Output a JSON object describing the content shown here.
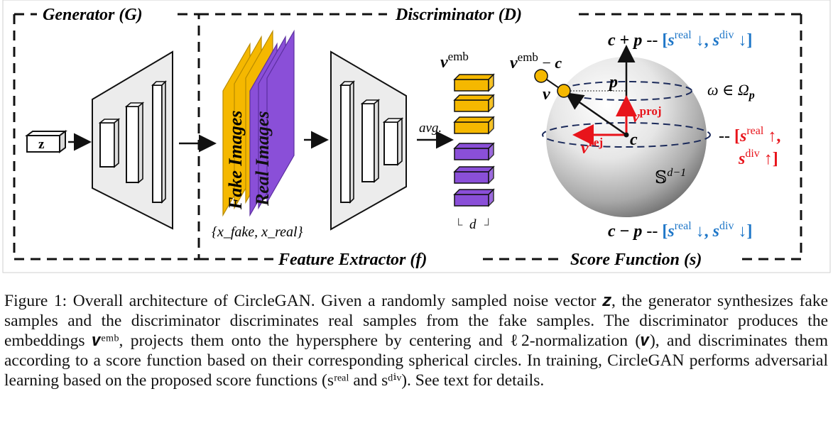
{
  "figure": {
    "headers": {
      "generator": "Generator (G)",
      "discriminator": "Discriminator (D)",
      "feature_extractor": "Feature Extractor (f)",
      "score_function": "Score Function (s)"
    },
    "labels": {
      "z": "z",
      "fake_images": "Fake Images",
      "real_images": "Real Images",
      "image_set": "{x_fake, x_real}",
      "avg": "avg.",
      "v_emb": "v^emb",
      "d": "d",
      "v_emb_minus_c": "v^emb − c",
      "v": "v",
      "p": "p",
      "c": "c",
      "v_proj": "v^proj",
      "v_rej": "v^rej",
      "omega": "ω ∈ Ω_p",
      "sphere": "𝕊^(d−1)",
      "top": "c + p -- [s^real ↓, s^div ↓]",
      "middle": "-- [s^real ↑, s^div ↑]",
      "bottom": "c − p -- [s^real ↓, s^div ↓]"
    },
    "colors": {
      "fake": "#F5B800",
      "real": "#8A4FD8",
      "blue": "#1F77C8",
      "red": "#E8141B",
      "navy": "#1B2A5A"
    }
  },
  "caption": {
    "label": "Figure 1:",
    "text": "Overall architecture of CircleGAN. Given a randomly sampled noise vector 𝒛, the generator synthesizes fake samples and the discriminator discriminates real samples from the fake samples. The discriminator produces the embeddings 𝒗ᵉᵐᵇ, projects them onto the hypersphere by centering and ℓ2-normalization (𝒗), and discriminates them according to a score function based on their corresponding spherical circles. In training, CircleGAN performs adversarial learning based on the proposed score functions (sʳᵉᵃˡ and sᵈⁱᵛ). See text for details."
  }
}
